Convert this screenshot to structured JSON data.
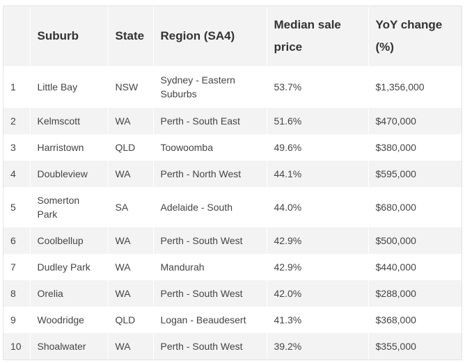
{
  "table": {
    "headers": [
      "",
      "Suburb",
      "State",
      "Region (SA4)",
      "Median sale price",
      "YoY change (%)"
    ],
    "rows": [
      [
        "1",
        "Little Bay",
        "NSW",
        "Sydney - Eastern Suburbs",
        "53.7%",
        "$1,356,000"
      ],
      [
        "2",
        "Kelmscott",
        "WA",
        "Perth - South East",
        "51.6%",
        "$470,000"
      ],
      [
        "3",
        "Harristown",
        "QLD",
        "Toowoomba",
        "49.6%",
        "$380,000"
      ],
      [
        "4",
        "Doubleview",
        "WA",
        "Perth - North West",
        "44.1%",
        "$595,000"
      ],
      [
        "5",
        "Somerton Park",
        "SA",
        "Adelaide - South",
        "44.0%",
        "$680,000"
      ],
      [
        "6",
        "Coolbellup",
        "WA",
        "Perth - South West",
        "42.9%",
        "$500,000"
      ],
      [
        "7",
        "Dudley Park",
        "WA",
        "Mandurah",
        "42.9%",
        "$440,000"
      ],
      [
        "8",
        "Orelia",
        "WA",
        "Perth - South West",
        "42.0%",
        "$288,000"
      ],
      [
        "9",
        "Woodridge",
        "QLD",
        "Logan - Beaudesert",
        "41.3%",
        "$368,000"
      ],
      [
        "10",
        "Shoalwater",
        "WA",
        "Perth - South West",
        "39.2%",
        "$355,000"
      ]
    ]
  }
}
